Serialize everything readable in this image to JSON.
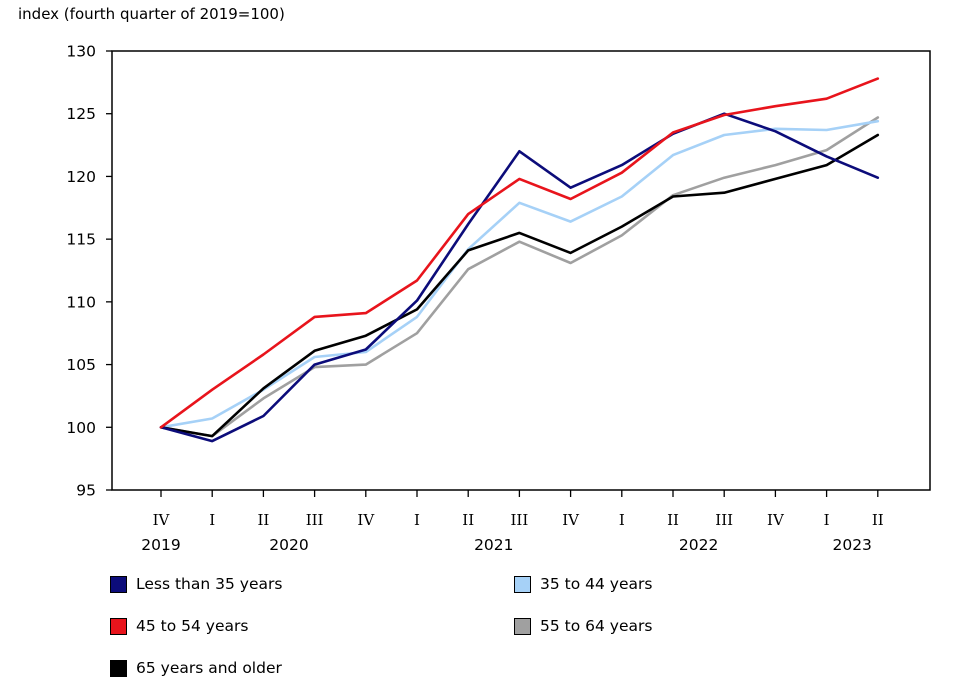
{
  "chart_data": {
    "type": "line",
    "ylabel": "index (fourth quarter of 2019=100)",
    "ylim": [
      95,
      130
    ],
    "yticks": [
      95,
      100,
      105,
      110,
      115,
      120,
      125,
      130
    ],
    "categories": [
      "IV",
      "I",
      "II",
      "III",
      "IV",
      "I",
      "II",
      "III",
      "IV",
      "I",
      "II",
      "III",
      "IV",
      "I",
      "II"
    ],
    "years": [
      {
        "label": "2019",
        "index": 0
      },
      {
        "label": "2020",
        "index": 2.5
      },
      {
        "label": "2021",
        "index": 6.5
      },
      {
        "label": "2022",
        "index": 10.5
      },
      {
        "label": "2023",
        "index": 13.5
      }
    ],
    "grid": false,
    "legend_position": "bottom",
    "series": [
      {
        "name": "Less than 35 years",
        "color": "#0c0c7a",
        "values": [
          100.0,
          98.9,
          100.9,
          105.0,
          106.2,
          110.1,
          116.2,
          122.0,
          119.1,
          120.9,
          123.4,
          125.0,
          123.6,
          121.6,
          119.9
        ]
      },
      {
        "name": "35 to 44 years",
        "color": "#a6d1f7",
        "values": [
          100.0,
          100.7,
          103.0,
          105.6,
          106.0,
          108.8,
          114.2,
          117.9,
          116.4,
          118.4,
          121.7,
          123.3,
          123.8,
          123.7,
          124.4
        ]
      },
      {
        "name": "45 to 54 years",
        "color": "#e8141c",
        "values": [
          100.0,
          103.0,
          105.8,
          108.8,
          109.1,
          111.7,
          117.0,
          119.8,
          118.2,
          120.3,
          123.5,
          124.9,
          125.6,
          126.2,
          127.8
        ]
      },
      {
        "name": "55 to 64 years",
        "color": "#a0a0a0",
        "values": [
          100.0,
          99.3,
          102.3,
          104.8,
          105.0,
          107.5,
          112.6,
          114.8,
          113.1,
          115.3,
          118.5,
          119.9,
          120.9,
          122.1,
          124.7
        ]
      },
      {
        "name": "65 years and older",
        "color": "#000000",
        "values": [
          100.0,
          99.3,
          103.1,
          106.1,
          107.3,
          109.4,
          114.1,
          115.5,
          113.9,
          116.0,
          118.4,
          118.7,
          119.8,
          120.9,
          123.3
        ]
      }
    ]
  }
}
